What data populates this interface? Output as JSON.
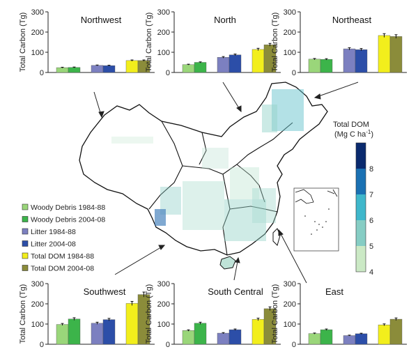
{
  "colors": {
    "woody_1984": "#9ad67a",
    "woody_2004": "#3cb44a",
    "litter_1984": "#7c80c0",
    "litter_2004": "#2c4ea8",
    "dom_1984": "#f2ee1c",
    "dom_2004": "#8b8c3a"
  },
  "legend": [
    {
      "label": "Woody Debris 1984-88",
      "color_key": "woody_1984"
    },
    {
      "label": "Woody Debris 2004-08",
      "color_key": "woody_2004"
    },
    {
      "label": "Litter 1984-88",
      "color_key": "litter_1984"
    },
    {
      "label": "Litter 2004-08",
      "color_key": "litter_2004"
    },
    {
      "label": "Total DOM 1984-88",
      "color_key": "dom_1984"
    },
    {
      "label": "Total DOM 2004-08",
      "color_key": "dom_2004"
    }
  ],
  "colorbar": {
    "title_line1": "Total DOM",
    "title_line2": "(Mg C ha",
    "title_sup": "-1",
    "title_end": ")",
    "ticks": [
      4,
      5,
      6,
      7,
      8
    ],
    "range": [
      4,
      9
    ],
    "colors": [
      "#cbe9c5",
      "#86cdc4",
      "#3fb7cb",
      "#1a71b3",
      "#0a2a6e"
    ]
  },
  "chart_data": [
    {
      "type": "bar",
      "title": "Northwest",
      "ylabel": "Total Carbon (Tg)",
      "ylim": [
        0,
        300
      ],
      "yticks": [
        0,
        100,
        200,
        300
      ],
      "series": [
        {
          "name": "Woody Debris 1984-88",
          "values": [
            24
          ]
        },
        {
          "name": "Woody Debris 2004-08",
          "values": [
            25
          ]
        },
        {
          "name": "Litter 1984-88",
          "values": [
            35
          ]
        },
        {
          "name": "Litter 2004-08",
          "values": [
            34
          ]
        },
        {
          "name": "Total DOM 1984-88",
          "values": [
            59
          ]
        },
        {
          "name": "Total DOM 2004-08",
          "values": [
            59
          ]
        }
      ]
    },
    {
      "type": "bar",
      "title": "North",
      "ylabel": "Total Carbon (Tg)",
      "ylim": [
        0,
        300
      ],
      "yticks": [
        0,
        100,
        200,
        300
      ],
      "series": [
        {
          "name": "Woody Debris 1984-88",
          "values": [
            39
          ]
        },
        {
          "name": "Woody Debris 2004-08",
          "values": [
            50
          ]
        },
        {
          "name": "Litter 1984-88",
          "values": [
            75
          ]
        },
        {
          "name": "Litter 2004-08",
          "values": [
            87
          ]
        },
        {
          "name": "Total DOM 1984-88",
          "values": [
            114
          ]
        },
        {
          "name": "Total DOM 2004-08",
          "values": [
            137
          ]
        }
      ]
    },
    {
      "type": "bar",
      "title": "Northeast",
      "ylabel": "Total Carbon (Tg)",
      "ylim": [
        0,
        300
      ],
      "yticks": [
        0,
        100,
        200,
        300
      ],
      "series": [
        {
          "name": "Woody Debris 1984-88",
          "values": [
            66
          ]
        },
        {
          "name": "Woody Debris 2004-08",
          "values": [
            65
          ]
        },
        {
          "name": "Litter 1984-88",
          "values": [
            117
          ]
        },
        {
          "name": "Litter 2004-08",
          "values": [
            113
          ]
        },
        {
          "name": "Total DOM 1984-88",
          "values": [
            183
          ]
        },
        {
          "name": "Total DOM 2004-08",
          "values": [
            178
          ]
        }
      ]
    },
    {
      "type": "bar",
      "title": "Southwest",
      "ylabel": "Total Carbon (Tg)",
      "ylim": [
        0,
        300
      ],
      "yticks": [
        0,
        100,
        200,
        300
      ],
      "series": [
        {
          "name": "Woody Debris 1984-88",
          "values": [
            98
          ]
        },
        {
          "name": "Woody Debris 2004-08",
          "values": [
            125
          ]
        },
        {
          "name": "Litter 1984-88",
          "values": [
            104
          ]
        },
        {
          "name": "Litter 2004-08",
          "values": [
            122
          ]
        },
        {
          "name": "Total DOM 1984-88",
          "values": [
            202
          ]
        },
        {
          "name": "Total DOM 2004-08",
          "values": [
            246
          ]
        }
      ]
    },
    {
      "type": "bar",
      "title": "South Central",
      "ylabel": "Total Carbon (Tg)",
      "ylim": [
        0,
        300
      ],
      "yticks": [
        0,
        100,
        200,
        300
      ],
      "series": [
        {
          "name": "Woody Debris 1984-88",
          "values": [
            68
          ]
        },
        {
          "name": "Woody Debris 2004-08",
          "values": [
            104
          ]
        },
        {
          "name": "Litter 1984-88",
          "values": [
            55
          ]
        },
        {
          "name": "Litter 2004-08",
          "values": [
            72
          ]
        },
        {
          "name": "Total DOM 1984-88",
          "values": [
            123
          ]
        },
        {
          "name": "Total DOM 2004-08",
          "values": [
            176
          ]
        }
      ]
    },
    {
      "type": "bar",
      "title": "East",
      "ylabel": "Total Carbon (Tg)",
      "ylim": [
        0,
        300
      ],
      "yticks": [
        0,
        100,
        200,
        300
      ],
      "series": [
        {
          "name": "Woody Debris 1984-88",
          "values": [
            53
          ]
        },
        {
          "name": "Woody Debris 2004-08",
          "values": [
            72
          ]
        },
        {
          "name": "Litter 1984-88",
          "values": [
            43
          ]
        },
        {
          "name": "Litter 2004-08",
          "values": [
            52
          ]
        },
        {
          "name": "Total DOM 1984-88",
          "values": [
            96
          ]
        },
        {
          "name": "Total DOM 2004-08",
          "values": [
            124
          ]
        }
      ]
    }
  ]
}
